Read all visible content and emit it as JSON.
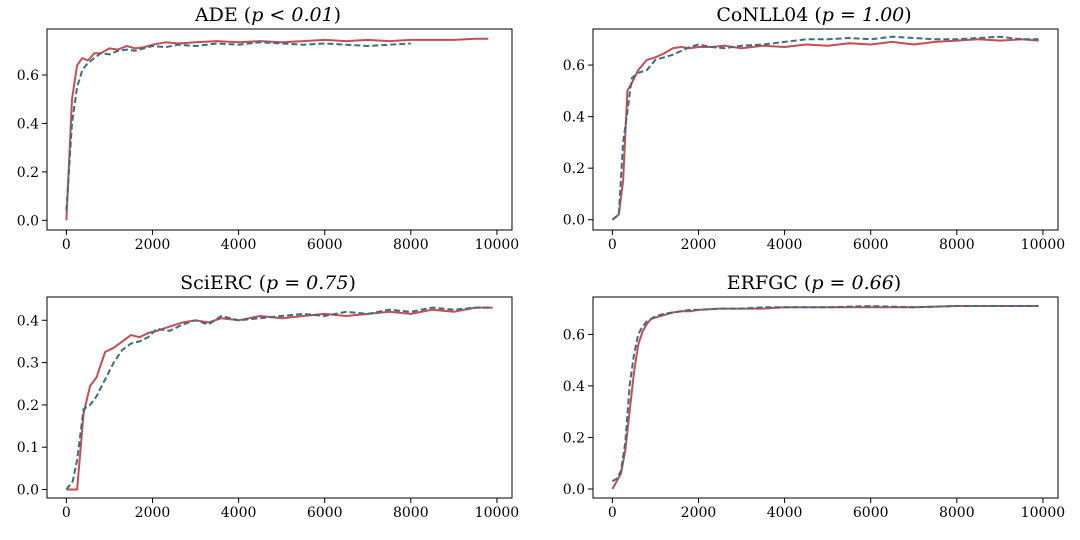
{
  "chart_data": [
    {
      "type": "line",
      "title_main": "ADE",
      "title_stat": "p < 0.01",
      "title": "ADE (p < 0.01)",
      "xlim": [
        -450,
        10350
      ],
      "ylim": [
        -0.04,
        0.79
      ],
      "xticks": [
        0,
        2000,
        4000,
        6000,
        8000,
        10000
      ],
      "yticks": [
        0.0,
        0.2,
        0.4,
        0.6
      ],
      "series": [
        {
          "name": "solid",
          "color": "#c44e52",
          "style": "solid",
          "x": [
            0,
            130,
            250,
            370,
            500,
            650,
            800,
            1000,
            1200,
            1400,
            1600,
            1800,
            2000,
            2300,
            2600,
            3000,
            3500,
            4000,
            4500,
            5000,
            5500,
            6000,
            6500,
            7000,
            7500,
            8000,
            8500,
            9000,
            9500,
            9800
          ],
          "y": [
            0.0,
            0.5,
            0.64,
            0.67,
            0.66,
            0.69,
            0.69,
            0.71,
            0.705,
            0.72,
            0.71,
            0.715,
            0.725,
            0.735,
            0.73,
            0.735,
            0.74,
            0.735,
            0.74,
            0.735,
            0.74,
            0.745,
            0.74,
            0.745,
            0.74,
            0.745,
            0.745,
            0.745,
            0.75,
            0.75
          ]
        },
        {
          "name": "dashed",
          "color": "#3c6e80",
          "style": "dashed",
          "x": [
            0,
            130,
            250,
            370,
            500,
            650,
            800,
            1000,
            1200,
            1400,
            1600,
            1800,
            2000,
            2300,
            2600,
            3000,
            3500,
            4000,
            4500,
            5000,
            5500,
            6000,
            6500,
            7000,
            7500,
            8000
          ],
          "y": [
            0.04,
            0.4,
            0.55,
            0.62,
            0.65,
            0.67,
            0.69,
            0.685,
            0.7,
            0.705,
            0.7,
            0.71,
            0.72,
            0.715,
            0.725,
            0.72,
            0.73,
            0.725,
            0.735,
            0.73,
            0.725,
            0.73,
            0.725,
            0.72,
            0.725,
            0.73
          ]
        }
      ]
    },
    {
      "type": "line",
      "title_main": "CoNLL04",
      "title_stat": "p = 1.00",
      "title": "CoNLL04 (p = 1.00)",
      "xlim": [
        -450,
        10350
      ],
      "ylim": [
        -0.04,
        0.74
      ],
      "xticks": [
        0,
        2000,
        4000,
        6000,
        8000,
        10000
      ],
      "yticks": [
        0.0,
        0.2,
        0.4,
        0.6
      ],
      "series": [
        {
          "name": "solid",
          "color": "#c44e52",
          "style": "solid",
          "x": [
            0,
            150,
            250,
            350,
            450,
            600,
            800,
            1000,
            1200,
            1400,
            1600,
            1800,
            2000,
            2300,
            2600,
            3000,
            3500,
            4000,
            4500,
            5000,
            5500,
            6000,
            6500,
            7000,
            7500,
            8000,
            8500,
            9000,
            9500,
            9900
          ],
          "y": [
            0.0,
            0.02,
            0.15,
            0.5,
            0.53,
            0.58,
            0.62,
            0.63,
            0.645,
            0.665,
            0.67,
            0.665,
            0.67,
            0.67,
            0.675,
            0.665,
            0.675,
            0.67,
            0.68,
            0.675,
            0.685,
            0.68,
            0.69,
            0.68,
            0.69,
            0.695,
            0.7,
            0.695,
            0.7,
            0.695
          ]
        },
        {
          "name": "dashed",
          "color": "#3c6e80",
          "style": "dashed",
          "x": [
            0,
            150,
            250,
            350,
            450,
            600,
            800,
            1000,
            1200,
            1400,
            1600,
            1800,
            2000,
            2300,
            2600,
            3000,
            3500,
            4000,
            4500,
            5000,
            5500,
            6000,
            6500,
            7000,
            7500,
            8000,
            8500,
            9000,
            9500,
            9900
          ],
          "y": [
            0.0,
            0.02,
            0.3,
            0.42,
            0.55,
            0.57,
            0.58,
            0.62,
            0.63,
            0.64,
            0.655,
            0.67,
            0.68,
            0.67,
            0.665,
            0.675,
            0.68,
            0.69,
            0.7,
            0.7,
            0.705,
            0.7,
            0.71,
            0.705,
            0.7,
            0.7,
            0.705,
            0.71,
            0.7,
            0.7
          ]
        }
      ]
    },
    {
      "type": "line",
      "title_main": "SciERC",
      "title_stat": "p = 0.75",
      "title": "SciERC (p = 0.75)",
      "xlim": [
        -450,
        10350
      ],
      "ylim": [
        -0.02,
        0.455
      ],
      "xticks": [
        0,
        2000,
        4000,
        6000,
        8000,
        10000
      ],
      "yticks": [
        0.0,
        0.1,
        0.2,
        0.3,
        0.4
      ],
      "series": [
        {
          "name": "solid",
          "color": "#c44e52",
          "style": "solid",
          "x": [
            0,
            150,
            250,
            400,
            550,
            700,
            900,
            1100,
            1300,
            1500,
            1700,
            1900,
            2100,
            2400,
            2700,
            3000,
            3300,
            3600,
            4000,
            4500,
            5000,
            5500,
            6000,
            6500,
            7000,
            7500,
            8000,
            8500,
            9000,
            9500,
            9900
          ],
          "y": [
            0.0,
            0.0,
            0.0,
            0.18,
            0.245,
            0.265,
            0.325,
            0.335,
            0.35,
            0.365,
            0.36,
            0.37,
            0.375,
            0.385,
            0.395,
            0.4,
            0.395,
            0.405,
            0.4,
            0.41,
            0.405,
            0.41,
            0.415,
            0.41,
            0.415,
            0.42,
            0.415,
            0.425,
            0.42,
            0.43,
            0.43
          ]
        },
        {
          "name": "dashed",
          "color": "#3c6e80",
          "style": "dashed",
          "x": [
            0,
            150,
            250,
            400,
            550,
            700,
            900,
            1100,
            1300,
            1500,
            1700,
            1900,
            2100,
            2400,
            2700,
            3000,
            3300,
            3600,
            4000,
            4500,
            5000,
            5500,
            6000,
            6500,
            7000,
            7500,
            8000,
            8500,
            9000,
            9500,
            9900
          ],
          "y": [
            0.0,
            0.02,
            0.07,
            0.19,
            0.2,
            0.22,
            0.26,
            0.3,
            0.33,
            0.345,
            0.35,
            0.36,
            0.38,
            0.375,
            0.39,
            0.4,
            0.39,
            0.41,
            0.4,
            0.405,
            0.41,
            0.415,
            0.41,
            0.42,
            0.415,
            0.425,
            0.42,
            0.43,
            0.425,
            0.43,
            0.43
          ]
        }
      ]
    },
    {
      "type": "line",
      "title_main": "ERFGC",
      "title_stat": "p = 0.66",
      "title": "ERFGC (p = 0.66)",
      "xlim": [
        -450,
        10350
      ],
      "ylim": [
        -0.035,
        0.745
      ],
      "xticks": [
        0,
        2000,
        4000,
        6000,
        8000,
        10000
      ],
      "yticks": [
        0.0,
        0.2,
        0.4,
        0.6
      ],
      "series": [
        {
          "name": "solid",
          "color": "#c44e52",
          "style": "solid",
          "x": [
            0,
            100,
            200,
            300,
            400,
            500,
            600,
            700,
            800,
            900,
            1000,
            1200,
            1400,
            1600,
            1800,
            2000,
            2500,
            3000,
            3500,
            4000,
            4500,
            5000,
            6000,
            7000,
            8000,
            9000,
            9900
          ],
          "y": [
            0.0,
            0.03,
            0.06,
            0.15,
            0.3,
            0.45,
            0.56,
            0.61,
            0.64,
            0.66,
            0.665,
            0.675,
            0.685,
            0.69,
            0.69,
            0.695,
            0.7,
            0.7,
            0.7,
            0.705,
            0.705,
            0.705,
            0.705,
            0.705,
            0.71,
            0.71,
            0.71
          ]
        },
        {
          "name": "dashed",
          "color": "#3c6e80",
          "style": "dashed",
          "x": [
            0,
            100,
            200,
            300,
            400,
            500,
            600,
            700,
            800,
            900,
            1000,
            1200,
            1400,
            1600,
            1800,
            2000,
            2500,
            3000,
            3500,
            4000,
            4500,
            5000,
            6000,
            7000,
            8000,
            9000,
            9900
          ],
          "y": [
            0.03,
            0.04,
            0.07,
            0.18,
            0.4,
            0.52,
            0.6,
            0.63,
            0.65,
            0.66,
            0.67,
            0.68,
            0.685,
            0.69,
            0.695,
            0.695,
            0.7,
            0.7,
            0.705,
            0.705,
            0.705,
            0.705,
            0.71,
            0.705,
            0.71,
            0.71,
            0.71
          ]
        }
      ]
    }
  ]
}
